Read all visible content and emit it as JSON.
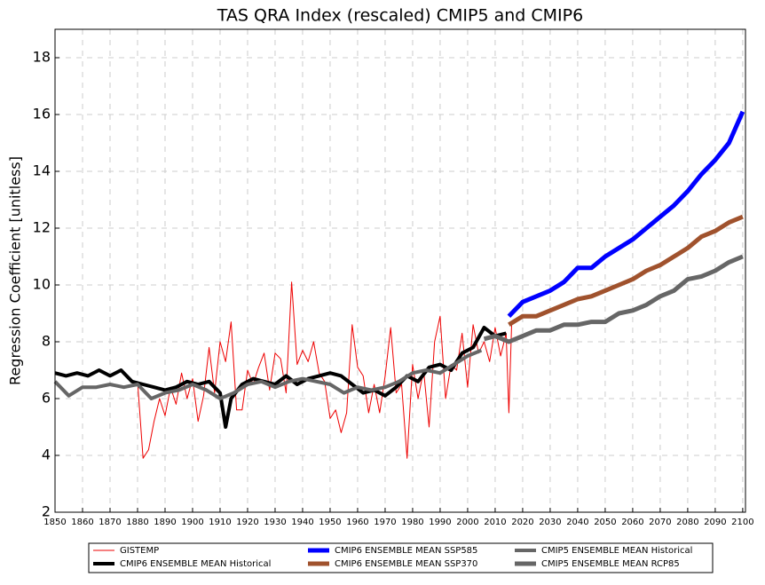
{
  "chart_data": {
    "type": "line",
    "title": "TAS QRA Index (rescaled) CMIP5 and CMIP6",
    "y_label": "Regression Coefficient [unitless]",
    "xlim": [
      1850,
      2101
    ],
    "ylim": [
      2,
      19
    ],
    "xticks": [
      1850,
      1860,
      1870,
      1880,
      1890,
      1900,
      1910,
      1920,
      1930,
      1940,
      1950,
      1960,
      1970,
      1980,
      1990,
      2000,
      2010,
      2020,
      2030,
      2040,
      2050,
      2060,
      2070,
      2080,
      2090,
      2100
    ],
    "yticks": [
      2,
      4,
      6,
      8,
      10,
      12,
      14,
      16,
      18
    ],
    "grid": true,
    "legend": "below",
    "series": [
      {
        "name": "GISTEMP",
        "color": "#ee0000",
        "linewidth": 1,
        "x": [
          1880,
          1882,
          1884,
          1886,
          1888,
          1890,
          1892,
          1894,
          1896,
          1898,
          1900,
          1902,
          1904,
          1906,
          1908,
          1910,
          1912,
          1914,
          1916,
          1918,
          1920,
          1922,
          1924,
          1926,
          1928,
          1930,
          1932,
          1934,
          1936,
          1938,
          1940,
          1942,
          1944,
          1946,
          1948,
          1950,
          1952,
          1954,
          1956,
          1958,
          1960,
          1962,
          1964,
          1966,
          1968,
          1970,
          1972,
          1974,
          1976,
          1978,
          1980,
          1982,
          1984,
          1986,
          1988,
          1990,
          1992,
          1994,
          1996,
          1998,
          2000,
          2002,
          2004,
          2006,
          2008,
          2010,
          2012,
          2014,
          2015,
          2016
        ],
        "values": [
          6.6,
          3.9,
          4.2,
          5.2,
          6.0,
          5.4,
          6.4,
          5.8,
          6.9,
          6.0,
          6.7,
          5.2,
          6.1,
          7.8,
          6.2,
          8.0,
          7.3,
          8.7,
          5.6,
          5.6,
          7.0,
          6.5,
          7.1,
          7.6,
          6.3,
          7.6,
          7.4,
          6.2,
          10.1,
          7.2,
          7.7,
          7.3,
          8.0,
          6.9,
          6.6,
          5.3,
          5.6,
          4.8,
          5.5,
          8.6,
          7.1,
          6.8,
          5.5,
          6.5,
          5.5,
          6.8,
          8.5,
          6.2,
          6.5,
          3.9,
          7.2,
          6.0,
          7.0,
          5.0,
          8.0,
          8.9,
          6.0,
          7.2,
          7.0,
          8.3,
          6.4,
          8.6,
          7.6,
          8.0,
          7.3,
          8.5,
          7.5,
          8.3,
          5.5,
          8.6
        ]
      },
      {
        "name": "CMIP6 ENSEMBLE MEAN Historical",
        "color": "#000000",
        "linewidth": 4,
        "x": [
          1850,
          1854,
          1858,
          1862,
          1866,
          1870,
          1874,
          1878,
          1882,
          1886,
          1890,
          1894,
          1898,
          1902,
          1906,
          1910,
          1912,
          1914,
          1918,
          1922,
          1926,
          1930,
          1934,
          1938,
          1942,
          1946,
          1950,
          1954,
          1958,
          1962,
          1966,
          1970,
          1974,
          1978,
          1982,
          1986,
          1990,
          1994,
          1998,
          2002,
          2006,
          2010,
          2014
        ],
        "values": [
          6.9,
          6.8,
          6.9,
          6.8,
          7.0,
          6.8,
          7.0,
          6.6,
          6.5,
          6.4,
          6.3,
          6.4,
          6.6,
          6.5,
          6.6,
          6.2,
          5.0,
          6.0,
          6.5,
          6.7,
          6.6,
          6.5,
          6.8,
          6.5,
          6.7,
          6.8,
          6.9,
          6.8,
          6.5,
          6.2,
          6.3,
          6.1,
          6.4,
          6.8,
          6.6,
          7.1,
          7.2,
          7.0,
          7.6,
          7.8,
          8.5,
          8.2,
          8.3
        ]
      },
      {
        "name": "CMIP6 ENSEMBLE MEAN SSP585",
        "color": "#0000ff",
        "linewidth": 5,
        "x": [
          2015,
          2020,
          2025,
          2030,
          2035,
          2040,
          2045,
          2050,
          2055,
          2060,
          2065,
          2070,
          2075,
          2080,
          2085,
          2090,
          2095,
          2100
        ],
        "values": [
          8.9,
          9.4,
          9.6,
          9.8,
          10.1,
          10.6,
          10.6,
          11.0,
          11.3,
          11.6,
          12.0,
          12.4,
          12.8,
          13.3,
          13.9,
          14.4,
          15.0,
          16.1
        ]
      },
      {
        "name": "CMIP6 ENSEMBLE MEAN SSP370",
        "color": "#a0522d",
        "linewidth": 5,
        "x": [
          2015,
          2020,
          2025,
          2030,
          2035,
          2040,
          2045,
          2050,
          2055,
          2060,
          2065,
          2070,
          2075,
          2080,
          2085,
          2090,
          2095,
          2100
        ],
        "values": [
          8.6,
          8.9,
          8.9,
          9.1,
          9.3,
          9.5,
          9.6,
          9.8,
          10.0,
          10.2,
          10.5,
          10.7,
          11.0,
          11.3,
          11.7,
          11.9,
          12.2,
          12.4
        ]
      },
      {
        "name": "CMIP5 ENSEMBLE MEAN Historical",
        "color": "#666666",
        "linewidth": 4,
        "x": [
          1850,
          1855,
          1860,
          1865,
          1870,
          1875,
          1880,
          1885,
          1890,
          1895,
          1900,
          1905,
          1910,
          1915,
          1920,
          1925,
          1930,
          1935,
          1940,
          1945,
          1950,
          1955,
          1960,
          1965,
          1970,
          1975,
          1980,
          1985,
          1990,
          1995,
          2000,
          2005
        ],
        "values": [
          6.6,
          6.1,
          6.4,
          6.4,
          6.5,
          6.4,
          6.5,
          6.0,
          6.2,
          6.3,
          6.5,
          6.3,
          6.0,
          6.2,
          6.5,
          6.6,
          6.4,
          6.6,
          6.7,
          6.6,
          6.5,
          6.2,
          6.4,
          6.3,
          6.4,
          6.6,
          6.9,
          7.0,
          6.9,
          7.2,
          7.5,
          7.7
        ]
      },
      {
        "name": "CMIP5 ENSEMBLE MEAN RCP85",
        "color": "#666666",
        "linewidth": 5,
        "x": [
          2006,
          2010,
          2015,
          2020,
          2025,
          2030,
          2035,
          2040,
          2045,
          2050,
          2055,
          2060,
          2065,
          2070,
          2075,
          2080,
          2085,
          2090,
          2095,
          2100
        ],
        "values": [
          8.1,
          8.2,
          8.0,
          8.2,
          8.4,
          8.4,
          8.6,
          8.6,
          8.7,
          8.7,
          9.0,
          9.1,
          9.3,
          9.6,
          9.8,
          10.2,
          10.3,
          10.5,
          10.8,
          11.0
        ]
      }
    ]
  }
}
